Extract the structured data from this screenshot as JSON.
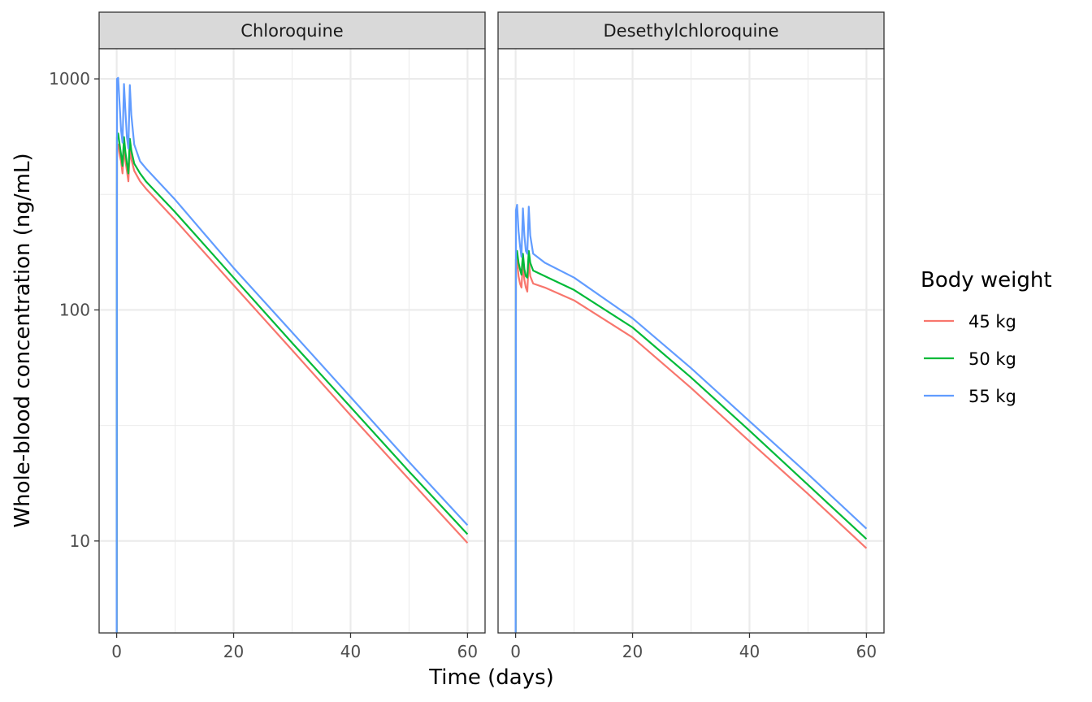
{
  "chart_data": {
    "type": "line",
    "xlabel": "Time (days)",
    "ylabel": "Whole-blood concentration (ng/mL)",
    "y_scale": "log10",
    "xlim": [
      -3,
      63
    ],
    "ylim": [
      4,
      1350
    ],
    "x_ticks": [
      "0",
      "20",
      "40",
      "60"
    ],
    "y_ticks": [
      "10",
      "100",
      "1000"
    ],
    "grid": true,
    "legend": {
      "title": "Body weight",
      "position": "right",
      "entries": [
        {
          "label": "45 kg",
          "color": "#F8766D"
        },
        {
          "label": "50 kg",
          "color": "#00BA38"
        },
        {
          "label": "55 kg",
          "color": "#619CFF"
        }
      ]
    },
    "panels": [
      {
        "title": "Chloroquine",
        "series": [
          {
            "name": "45 kg",
            "color": "#F8766D",
            "x": [
              0,
              0.05,
              0.25,
              0.5,
              0.75,
              1.0,
              1.25,
              1.5,
              1.75,
              2.0,
              2.25,
              2.5,
              3,
              4,
              5,
              10,
              20,
              30,
              40,
              50,
              60
            ],
            "y": [
              4,
              500,
              520,
              470,
              440,
              390,
              500,
              440,
              400,
              360,
              490,
              450,
              400,
              360,
              335,
              245,
              128,
              67,
              35,
              18.5,
              9.8
            ]
          },
          {
            "name": "50 kg",
            "color": "#00BA38",
            "x": [
              0,
              0.05,
              0.25,
              0.5,
              0.75,
              1.0,
              1.25,
              1.5,
              1.75,
              2.0,
              2.25,
              2.5,
              3,
              4,
              5,
              10,
              20,
              30,
              40,
              50,
              60
            ],
            "y": [
              4,
              560,
              580,
              520,
              470,
              420,
              560,
              480,
              430,
              390,
              550,
              490,
              430,
              390,
              360,
              265,
              138,
              72,
              38,
              20,
              10.7
            ]
          },
          {
            "name": "55 kg",
            "color": "#619CFF",
            "x": [
              0,
              0.05,
              0.25,
              0.5,
              0.75,
              1.0,
              1.25,
              1.5,
              1.75,
              2.0,
              2.25,
              2.5,
              3,
              4,
              5,
              10,
              20,
              30,
              40,
              50,
              60
            ],
            "y": [
              4,
              1000,
              1010,
              780,
              600,
              530,
              950,
              720,
              560,
              500,
              940,
              700,
              520,
              440,
              410,
              300,
              152,
              80,
              42,
              22,
              11.7
            ]
          }
        ]
      },
      {
        "title": "Desethylchloroquine",
        "series": [
          {
            "name": "45 kg",
            "color": "#F8766D",
            "x": [
              0,
              0.05,
              0.25,
              0.5,
              0.75,
              1.0,
              1.25,
              1.5,
              1.75,
              2.0,
              2.25,
              2.5,
              3,
              5,
              10,
              20,
              30,
              40,
              50,
              60
            ],
            "y": [
              4,
              150,
              165,
              140,
              130,
              125,
              160,
              135,
              125,
              120,
              165,
              140,
              130,
              125,
              110,
              76,
              46,
              27,
              16,
              9.3
            ]
          },
          {
            "name": "50 kg",
            "color": "#00BA38",
            "x": [
              0,
              0.05,
              0.25,
              0.5,
              0.75,
              1.0,
              1.25,
              1.5,
              1.75,
              2.0,
              2.25,
              2.5,
              3,
              5,
              10,
              20,
              30,
              40,
              50,
              60
            ],
            "y": [
              4,
              165,
              180,
              160,
              150,
              142,
              175,
              150,
              140,
              138,
              180,
              160,
              148,
              140,
              122,
              84,
              51,
              30,
              17.5,
              10.2
            ]
          },
          {
            "name": "55 kg",
            "color": "#619CFF",
            "x": [
              0,
              0.05,
              0.25,
              0.5,
              0.75,
              1.0,
              1.25,
              1.5,
              1.75,
              2.0,
              2.25,
              2.5,
              3,
              5,
              10,
              20,
              30,
              40,
              50,
              60
            ],
            "y": [
              4,
              270,
              285,
              220,
              190,
              170,
              275,
              210,
              180,
              175,
              280,
              210,
              175,
              160,
              138,
              92,
              56,
              33,
              19.5,
              11.3
            ]
          }
        ]
      }
    ]
  }
}
